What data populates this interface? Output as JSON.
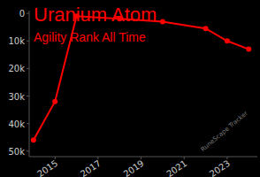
{
  "chart_data": {
    "type": "line",
    "title": "Uranium Atom",
    "subtitle": "Agility Rank All Time",
    "annotations": [
      "RuneScape Tracker"
    ],
    "x": [
      2014,
      2015,
      2016,
      2018,
      2020,
      2022,
      2023,
      2024
    ],
    "series": [
      {
        "name": "Agility Rank",
        "color": "#ff0000",
        "marker": "circle",
        "values": [
          46000,
          32000,
          1000,
          2000,
          3000,
          5500,
          10000,
          13000
        ]
      }
    ],
    "xlim": [
      2013.8,
      2024.4
    ],
    "xticks": [
      2015,
      2017,
      2019,
      2021,
      2023
    ],
    "ylim": [
      52000,
      -1000
    ],
    "yticks": [
      0,
      {
        "value": 10000,
        "label": "10k"
      },
      {
        "value": 20000,
        "label": "20k"
      },
      {
        "value": 30000,
        "label": "30k"
      },
      {
        "value": 40000,
        "label": "40k"
      },
      {
        "value": 50000,
        "label": "50k"
      }
    ],
    "grid": false
  }
}
